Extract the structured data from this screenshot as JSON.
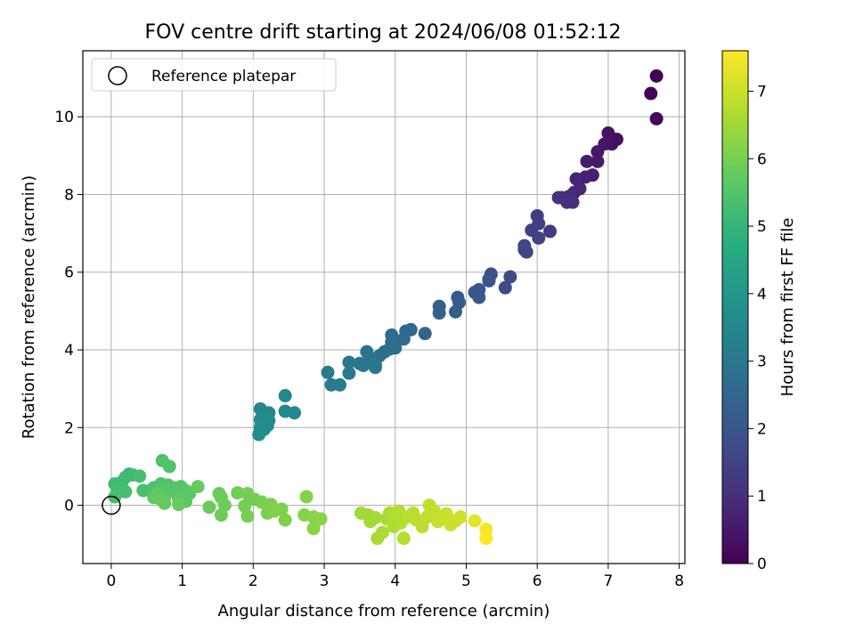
{
  "chart_data": {
    "type": "scatter",
    "title": "FOV centre drift starting at 2024/06/08 01:52:12",
    "xlabel": "Angular distance from reference (arcmin)",
    "ylabel": "Rotation from reference (arcmin)",
    "xlim": [
      -0.4,
      8.08
    ],
    "ylim": [
      -1.5,
      11.7
    ],
    "xticks": [
      "0",
      "1",
      "2",
      "3",
      "4",
      "5",
      "6",
      "7",
      "8"
    ],
    "yticks": [
      "0",
      "2",
      "4",
      "6",
      "8",
      "10"
    ],
    "grid": true,
    "legend": {
      "position": "top-left",
      "entries": [
        "Reference platepar"
      ]
    },
    "reference_point": {
      "x": 0,
      "y": 0
    },
    "colorbar": {
      "label": "Hours from first FF file",
      "range": [
        0,
        7.6
      ],
      "ticks": [
        "0",
        "1",
        "2",
        "3",
        "4",
        "5",
        "6",
        "7"
      ],
      "colormap": "viridis"
    },
    "points": [
      {
        "x": 7.68,
        "y": 11.05,
        "c": 0.0
      },
      {
        "x": 7.6,
        "y": 10.6,
        "c": 0.05
      },
      {
        "x": 7.68,
        "y": 9.95,
        "c": 0.1
      },
      {
        "x": 7.12,
        "y": 9.42,
        "c": 0.3
      },
      {
        "x": 7.05,
        "y": 9.3,
        "c": 0.35
      },
      {
        "x": 7.0,
        "y": 9.58,
        "c": 0.35
      },
      {
        "x": 6.95,
        "y": 9.3,
        "c": 0.45
      },
      {
        "x": 6.85,
        "y": 9.1,
        "c": 0.5
      },
      {
        "x": 6.85,
        "y": 8.85,
        "c": 0.55
      },
      {
        "x": 6.7,
        "y": 8.85,
        "c": 0.6
      },
      {
        "x": 6.78,
        "y": 8.5,
        "c": 0.65
      },
      {
        "x": 6.68,
        "y": 8.45,
        "c": 0.7
      },
      {
        "x": 6.55,
        "y": 8.4,
        "c": 0.75
      },
      {
        "x": 6.6,
        "y": 8.15,
        "c": 0.8
      },
      {
        "x": 6.52,
        "y": 8.05,
        "c": 0.85
      },
      {
        "x": 6.45,
        "y": 7.95,
        "c": 0.9
      },
      {
        "x": 6.35,
        "y": 7.92,
        "c": 0.95
      },
      {
        "x": 6.42,
        "y": 7.8,
        "c": 1.0
      },
      {
        "x": 6.5,
        "y": 7.8,
        "c": 1.05
      },
      {
        "x": 6.3,
        "y": 7.92,
        "c": 1.1
      },
      {
        "x": 6.18,
        "y": 7.05,
        "c": 1.3
      },
      {
        "x": 6.0,
        "y": 7.45,
        "c": 1.35
      },
      {
        "x": 6.02,
        "y": 7.25,
        "c": 1.4
      },
      {
        "x": 5.92,
        "y": 7.08,
        "c": 1.45
      },
      {
        "x": 6.02,
        "y": 6.88,
        "c": 1.5
      },
      {
        "x": 5.82,
        "y": 6.68,
        "c": 1.55
      },
      {
        "x": 5.85,
        "y": 6.52,
        "c": 1.6
      },
      {
        "x": 5.82,
        "y": 6.58,
        "c": 1.62
      },
      {
        "x": 5.62,
        "y": 5.88,
        "c": 1.75
      },
      {
        "x": 5.55,
        "y": 5.6,
        "c": 1.8
      },
      {
        "x": 5.35,
        "y": 5.95,
        "c": 1.85
      },
      {
        "x": 5.32,
        "y": 5.82,
        "c": 1.9
      },
      {
        "x": 5.32,
        "y": 5.78,
        "c": 1.92
      },
      {
        "x": 5.18,
        "y": 5.55,
        "c": 2.0
      },
      {
        "x": 5.12,
        "y": 5.48,
        "c": 2.02
      },
      {
        "x": 5.18,
        "y": 5.35,
        "c": 2.05
      },
      {
        "x": 4.88,
        "y": 5.35,
        "c": 2.15
      },
      {
        "x": 4.9,
        "y": 5.22,
        "c": 2.2
      },
      {
        "x": 4.85,
        "y": 4.98,
        "c": 2.25
      },
      {
        "x": 4.62,
        "y": 5.12,
        "c": 2.3
      },
      {
        "x": 4.62,
        "y": 4.95,
        "c": 2.35
      },
      {
        "x": 4.42,
        "y": 4.42,
        "c": 2.45
      },
      {
        "x": 4.22,
        "y": 4.52,
        "c": 2.5
      },
      {
        "x": 4.15,
        "y": 4.48,
        "c": 2.55
      },
      {
        "x": 4.12,
        "y": 4.28,
        "c": 2.6
      },
      {
        "x": 3.95,
        "y": 4.38,
        "c": 2.65
      },
      {
        "x": 3.95,
        "y": 4.2,
        "c": 2.68
      },
      {
        "x": 3.92,
        "y": 4.02,
        "c": 2.7
      },
      {
        "x": 4.0,
        "y": 4.05,
        "c": 2.72
      },
      {
        "x": 3.85,
        "y": 3.95,
        "c": 2.78
      },
      {
        "x": 3.78,
        "y": 3.85,
        "c": 2.8
      },
      {
        "x": 3.6,
        "y": 3.95,
        "c": 2.85
      },
      {
        "x": 3.65,
        "y": 3.75,
        "c": 2.88
      },
      {
        "x": 3.72,
        "y": 3.62,
        "c": 2.9
      },
      {
        "x": 3.5,
        "y": 3.65,
        "c": 2.95
      },
      {
        "x": 3.55,
        "y": 3.6,
        "c": 2.97
      },
      {
        "x": 3.35,
        "y": 3.68,
        "c": 3.0
      },
      {
        "x": 3.72,
        "y": 3.55,
        "c": 3.02
      },
      {
        "x": 3.35,
        "y": 3.4,
        "c": 3.05
      },
      {
        "x": 3.05,
        "y": 3.42,
        "c": 3.1
      },
      {
        "x": 3.1,
        "y": 3.1,
        "c": 3.12
      },
      {
        "x": 3.22,
        "y": 3.1,
        "c": 3.15
      },
      {
        "x": 2.45,
        "y": 2.82,
        "c": 3.45
      },
      {
        "x": 2.1,
        "y": 2.48,
        "c": 3.5
      },
      {
        "x": 2.45,
        "y": 2.42,
        "c": 3.52
      },
      {
        "x": 2.58,
        "y": 2.38,
        "c": 3.55
      },
      {
        "x": 2.22,
        "y": 2.38,
        "c": 3.57
      },
      {
        "x": 2.15,
        "y": 2.3,
        "c": 3.6
      },
      {
        "x": 2.1,
        "y": 2.2,
        "c": 3.62
      },
      {
        "x": 2.22,
        "y": 2.18,
        "c": 3.64
      },
      {
        "x": 2.2,
        "y": 2.05,
        "c": 3.66
      },
      {
        "x": 2.1,
        "y": 2.0,
        "c": 3.68
      },
      {
        "x": 2.15,
        "y": 1.95,
        "c": 3.7
      },
      {
        "x": 2.08,
        "y": 1.82,
        "c": 3.72
      },
      {
        "x": 0.25,
        "y": 0.8,
        "c": 5.1
      },
      {
        "x": 0.2,
        "y": 0.72,
        "c": 5.12
      },
      {
        "x": 0.3,
        "y": 0.78,
        "c": 5.15
      },
      {
        "x": 0.15,
        "y": 0.6,
        "c": 5.18
      },
      {
        "x": 0.05,
        "y": 0.55,
        "c": 5.2
      },
      {
        "x": 0.1,
        "y": 0.42,
        "c": 5.22
      },
      {
        "x": 0.08,
        "y": 0.32,
        "c": 5.25
      },
      {
        "x": 0.05,
        "y": 0.22,
        "c": 5.28
      },
      {
        "x": 0.2,
        "y": 0.35,
        "c": 5.3
      },
      {
        "x": 0.4,
        "y": 0.75,
        "c": 5.32
      },
      {
        "x": 0.45,
        "y": 0.38,
        "c": 5.35
      },
      {
        "x": 0.55,
        "y": 0.38,
        "c": 5.37
      },
      {
        "x": 0.6,
        "y": 0.45,
        "c": 5.4
      },
      {
        "x": 0.7,
        "y": 0.55,
        "c": 5.42
      },
      {
        "x": 0.72,
        "y": 1.15,
        "c": 5.44
      },
      {
        "x": 0.82,
        "y": 1.0,
        "c": 5.46
      },
      {
        "x": 0.75,
        "y": 0.45,
        "c": 5.48
      },
      {
        "x": 0.8,
        "y": 0.52,
        "c": 5.5
      },
      {
        "x": 0.85,
        "y": 0.4,
        "c": 5.52
      },
      {
        "x": 0.9,
        "y": 0.45,
        "c": 5.54
      },
      {
        "x": 0.92,
        "y": 0.3,
        "c": 5.56
      },
      {
        "x": 0.98,
        "y": 0.48,
        "c": 5.58
      },
      {
        "x": 1.05,
        "y": 0.38,
        "c": 5.6
      },
      {
        "x": 1.1,
        "y": 0.3,
        "c": 5.62
      },
      {
        "x": 1.05,
        "y": 0.1,
        "c": 5.64
      },
      {
        "x": 0.95,
        "y": 0.15,
        "c": 5.66
      },
      {
        "x": 0.75,
        "y": 0.2,
        "c": 5.68
      },
      {
        "x": 0.65,
        "y": 0.3,
        "c": 5.7
      },
      {
        "x": 0.6,
        "y": 0.2,
        "c": 5.72
      },
      {
        "x": 0.7,
        "y": 0.15,
        "c": 5.74
      },
      {
        "x": 0.75,
        "y": 0.05,
        "c": 5.76
      },
      {
        "x": 0.95,
        "y": 0.02,
        "c": 5.78
      },
      {
        "x": 1.22,
        "y": 0.48,
        "c": 5.8
      },
      {
        "x": 1.38,
        "y": -0.05,
        "c": 5.82
      },
      {
        "x": 1.52,
        "y": 0.3,
        "c": 5.84
      },
      {
        "x": 1.55,
        "y": 0.2,
        "c": 5.86
      },
      {
        "x": 1.6,
        "y": 0.0,
        "c": 5.88
      },
      {
        "x": 1.55,
        "y": -0.25,
        "c": 5.9
      },
      {
        "x": 1.78,
        "y": 0.32,
        "c": 5.92
      },
      {
        "x": 1.92,
        "y": 0.3,
        "c": 5.94
      },
      {
        "x": 2.02,
        "y": 0.15,
        "c": 5.96
      },
      {
        "x": 1.88,
        "y": -0.02,
        "c": 5.98
      },
      {
        "x": 1.92,
        "y": -0.28,
        "c": 6.0
      },
      {
        "x": 2.12,
        "y": 0.08,
        "c": 6.02
      },
      {
        "x": 2.25,
        "y": 0.02,
        "c": 6.04
      },
      {
        "x": 2.2,
        "y": -0.2,
        "c": 6.06
      },
      {
        "x": 2.4,
        "y": -0.1,
        "c": 6.08
      },
      {
        "x": 2.45,
        "y": -0.38,
        "c": 6.1
      },
      {
        "x": 2.3,
        "y": -0.15,
        "c": 6.12
      },
      {
        "x": 2.75,
        "y": 0.22,
        "c": 6.15
      },
      {
        "x": 2.72,
        "y": -0.25,
        "c": 6.18
      },
      {
        "x": 2.85,
        "y": -0.3,
        "c": 6.2
      },
      {
        "x": 2.95,
        "y": -0.35,
        "c": 6.22
      },
      {
        "x": 2.85,
        "y": -0.6,
        "c": 6.24
      },
      {
        "x": 3.52,
        "y": -0.2,
        "c": 6.5
      },
      {
        "x": 3.62,
        "y": -0.25,
        "c": 6.52
      },
      {
        "x": 3.65,
        "y": -0.42,
        "c": 6.54
      },
      {
        "x": 3.72,
        "y": -0.32,
        "c": 6.56
      },
      {
        "x": 3.75,
        "y": -0.85,
        "c": 6.58
      },
      {
        "x": 3.82,
        "y": -0.7,
        "c": 6.6
      },
      {
        "x": 3.88,
        "y": -0.35,
        "c": 6.62
      },
      {
        "x": 3.92,
        "y": -0.2,
        "c": 6.64
      },
      {
        "x": 3.95,
        "y": -0.4,
        "c": 6.66
      },
      {
        "x": 3.98,
        "y": -0.55,
        "c": 6.68
      },
      {
        "x": 4.02,
        "y": -0.28,
        "c": 6.7
      },
      {
        "x": 4.05,
        "y": -0.15,
        "c": 6.72
      },
      {
        "x": 4.08,
        "y": -0.45,
        "c": 6.74
      },
      {
        "x": 4.12,
        "y": -0.85,
        "c": 6.76
      },
      {
        "x": 4.18,
        "y": -0.3,
        "c": 6.78
      },
      {
        "x": 4.25,
        "y": -0.2,
        "c": 6.8
      },
      {
        "x": 4.3,
        "y": -0.38,
        "c": 6.82
      },
      {
        "x": 4.38,
        "y": -0.55,
        "c": 6.84
      },
      {
        "x": 4.45,
        "y": -0.3,
        "c": 6.86
      },
      {
        "x": 4.48,
        "y": 0.0,
        "c": 6.88
      },
      {
        "x": 4.55,
        "y": -0.15,
        "c": 6.9
      },
      {
        "x": 4.6,
        "y": -0.42,
        "c": 6.92
      },
      {
        "x": 4.68,
        "y": -0.3,
        "c": 6.94
      },
      {
        "x": 4.72,
        "y": -0.22,
        "c": 6.96
      },
      {
        "x": 4.78,
        "y": -0.5,
        "c": 6.98
      },
      {
        "x": 4.85,
        "y": -0.4,
        "c": 7.0
      },
      {
        "x": 4.92,
        "y": -0.3,
        "c": 7.05
      },
      {
        "x": 5.12,
        "y": -0.4,
        "c": 7.3
      },
      {
        "x": 5.28,
        "y": -0.62,
        "c": 7.5
      },
      {
        "x": 5.28,
        "y": -0.85,
        "c": 7.6
      }
    ]
  }
}
